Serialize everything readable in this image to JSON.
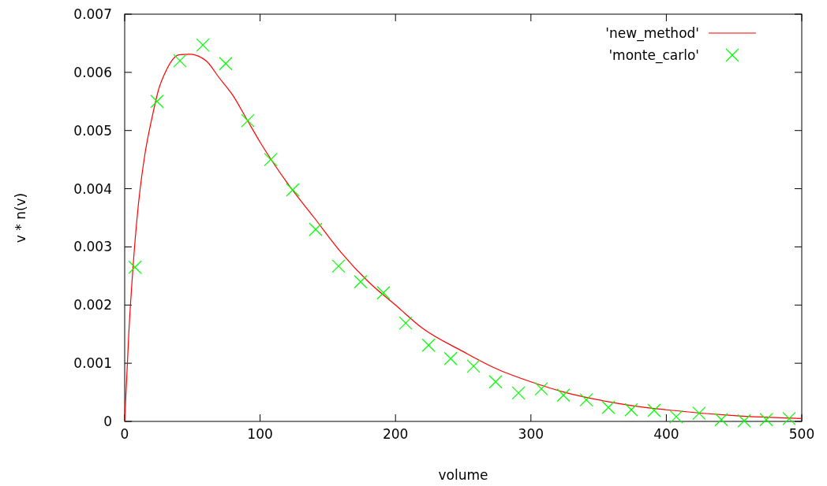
{
  "chart_data": {
    "type": "line",
    "xlabel": "volume",
    "ylabel": "v * n(v)",
    "xlim": [
      0,
      500
    ],
    "ylim": [
      0,
      0.007
    ],
    "xticks": [
      0,
      100,
      200,
      300,
      400,
      500
    ],
    "yticks": [
      0,
      0.001,
      0.002,
      0.003,
      0.004,
      0.005,
      0.006,
      0.007
    ],
    "grid": false,
    "legend": "top right",
    "series": [
      {
        "name": "'new_method'",
        "color": "#ff0000",
        "marker": "none",
        "line_style": "solid",
        "x": [
          0,
          3,
          6,
          10,
          15,
          20,
          25,
          30,
          40,
          48,
          60,
          70,
          80,
          90,
          100,
          120,
          140,
          160,
          180,
          200,
          220,
          250,
          275,
          300,
          325,
          350,
          375,
          400,
          450,
          500
        ],
        "values": [
          0,
          0.0015,
          0.0026,
          0.0037,
          0.0046,
          0.0052,
          0.0057,
          0.006,
          0.0063,
          0.00631,
          0.0062,
          0.0059,
          0.0056,
          0.0052,
          0.0048,
          0.0041,
          0.0035,
          0.0029,
          0.0024,
          0.002,
          0.0016,
          0.0012,
          0.0009,
          0.00068,
          0.0005,
          0.00037,
          0.00027,
          0.0002,
          0.0001,
          5e-05
        ]
      },
      {
        "name": "'monte_carlo'",
        "type": "scatter",
        "color": "#00ff00",
        "marker": "cross",
        "x": [
          7.6,
          23.9,
          40.8,
          57.7,
          74.6,
          90.9,
          107.8,
          124.1,
          141,
          157.9,
          174.2,
          191.1,
          207.5,
          224.4,
          240.7,
          257.6,
          273.9,
          290.8,
          307.7,
          324,
          340.9,
          357.2,
          374.1,
          391,
          407.3,
          424.2,
          440.6,
          457.5,
          473.8,
          490.7
        ],
        "values": [
          0.00265,
          0.0055,
          0.0062,
          0.00647,
          0.00615,
          0.00517,
          0.0045,
          0.00398,
          0.0033,
          0.00267,
          0.0024,
          0.00221,
          0.00169,
          0.00131,
          0.00108,
          0.00095,
          0.00068,
          0.00049,
          0.00056,
          0.00045,
          0.00037,
          0.00024,
          0.0002,
          0.00019,
          8e-05,
          0.00014,
          3e-05,
          1e-05,
          3e-05,
          5e-05
        ]
      }
    ]
  }
}
